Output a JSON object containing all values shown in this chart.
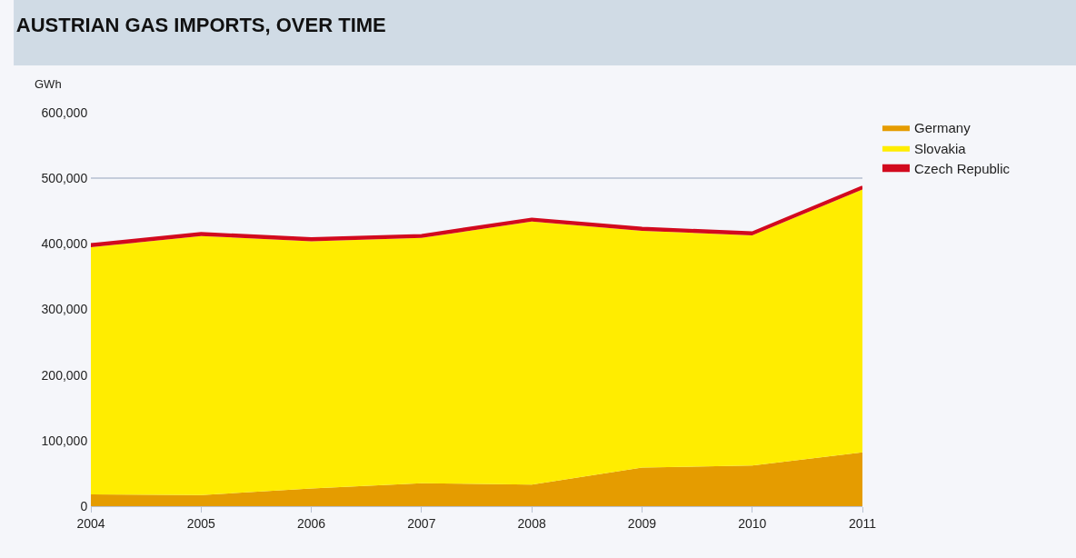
{
  "chart_data": {
    "type": "area",
    "stacked": true,
    "title": "AUSTRIAN GAS IMPORTS, OVER TIME",
    "ylabel": "GWh",
    "x": [
      2004,
      2005,
      2006,
      2007,
      2008,
      2009,
      2010,
      2011
    ],
    "series": [
      {
        "name": "Germany",
        "color": "#e59c00",
        "values": [
          18000,
          17000,
          27000,
          35000,
          33000,
          59000,
          62000,
          82000
        ]
      },
      {
        "name": "Slovakia",
        "color": "#ffed00",
        "values": [
          377000,
          395000,
          377000,
          374000,
          401000,
          361000,
          351000,
          401000
        ]
      },
      {
        "name": "Czech Republic",
        "color": "#d20a1e",
        "values": [
          4000,
          4000,
          4000,
          4000,
          4000,
          4000,
          4000,
          4000
        ]
      }
    ],
    "xlim": [
      2004,
      2011
    ],
    "xticks": [
      2004,
      2005,
      2006,
      2007,
      2008,
      2009,
      2010,
      2011
    ],
    "ylim": [
      0,
      600000
    ],
    "yticks": [
      0,
      {
        "value": 100000,
        "label": "100,000"
      },
      {
        "value": 200000,
        "label": "200,000"
      },
      {
        "value": 300000,
        "label": "300,000"
      },
      {
        "value": 400000,
        "label": "400,000"
      },
      {
        "value": 500000,
        "label": "500,000"
      },
      {
        "value": 600000,
        "label": "600,000"
      }
    ],
    "grid": "y",
    "legend": "top right"
  }
}
